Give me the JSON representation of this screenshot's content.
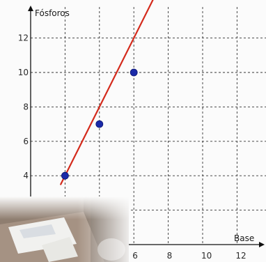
{
  "chart_data": {
    "type": "line",
    "xlabel": "Base",
    "ylabel": "Fósforos",
    "xlim": [
      0,
      12.7
    ],
    "ylim": [
      0,
      13.8
    ],
    "x_ticks": [
      6,
      8,
      10,
      12
    ],
    "y_ticks": [
      4,
      6,
      8,
      10,
      12
    ],
    "x_tick_labels": [
      "6",
      "8",
      "10",
      "12"
    ],
    "y_tick_labels": [
      "4",
      "6",
      "8",
      "10",
      "12"
    ],
    "grid": true,
    "series": [
      {
        "line_x": [
          1.75,
          8.7
        ],
        "line_y": [
          3.5,
          17.4
        ],
        "color": "#d42a1c"
      }
    ],
    "points": [
      {
        "x": 2,
        "y": 4
      },
      {
        "x": 4,
        "y": 7
      },
      {
        "x": 6,
        "y": 10
      }
    ],
    "point_color": "#1a2aa8"
  },
  "colors": {
    "line": "#d42a1c",
    "points": "#1a2aa8",
    "grid": "#333333",
    "axis": "#111111",
    "background": "#fbfbfb"
  }
}
